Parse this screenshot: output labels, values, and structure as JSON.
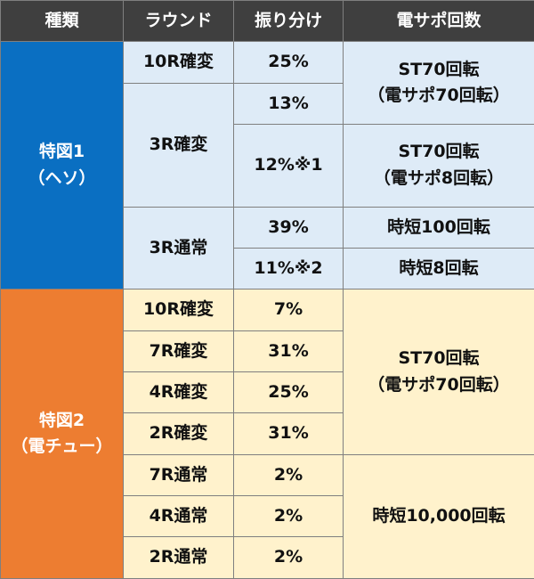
{
  "table": {
    "header": [
      "種類",
      "ラウンド",
      "振り分け",
      "電サポ回数"
    ],
    "sections": [
      {
        "name_lines": [
          "特図1",
          "（ヘソ）"
        ],
        "rounds": [
          "10R確変",
          "3R確変",
          "3R通常"
        ],
        "shares": [
          "25%",
          "13%",
          "12%※1",
          "39%",
          "11%※2"
        ],
        "support": [
          [
            "ST70回転",
            "（電サポ70回転）"
          ],
          [
            "ST70回転",
            "（電サポ8回転）"
          ],
          [
            "時短100回転"
          ],
          [
            "時短8回転"
          ]
        ]
      },
      {
        "name_lines": [
          "特図2",
          "（電チュー）"
        ],
        "rounds": [
          "10R確変",
          "7R確変",
          "4R確変",
          "2R確変",
          "7R通常",
          "4R通常",
          "2R通常"
        ],
        "shares": [
          "7%",
          "31%",
          "25%",
          "31%",
          "2%",
          "2%",
          "2%"
        ],
        "support": [
          [
            "ST70回転",
            "（電サポ70回転）"
          ],
          [
            "時短10,000回転"
          ]
        ]
      }
    ]
  }
}
